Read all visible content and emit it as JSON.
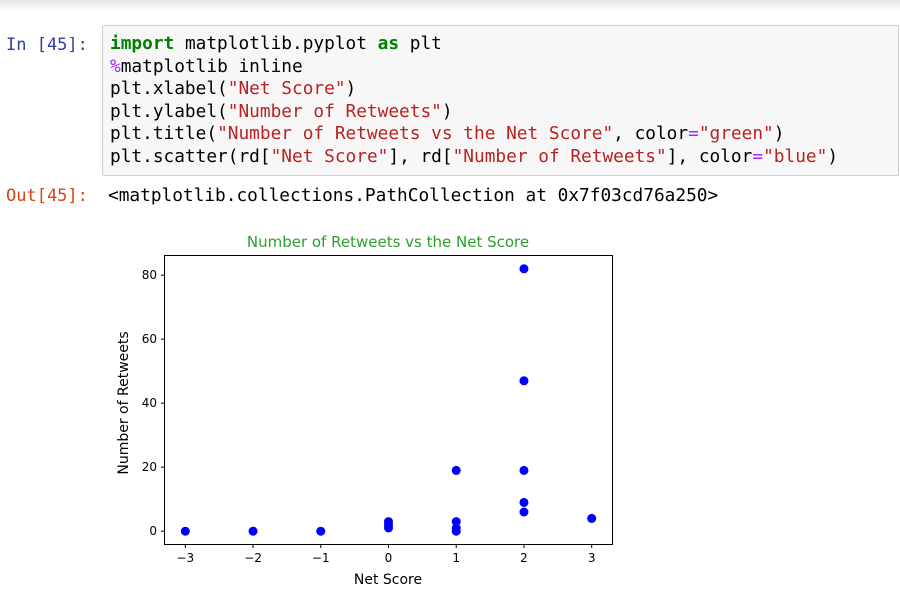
{
  "notebook": {
    "input_prompt": "In [45]:",
    "output_prompt": "Out[45]:",
    "code_lines": [
      [
        {
          "t": "import",
          "c": "kw"
        },
        {
          "t": " matplotlib.pyplot ",
          "c": ""
        },
        {
          "t": "as",
          "c": "kw"
        },
        {
          "t": " plt",
          "c": ""
        }
      ],
      [
        {
          "t": "%",
          "c": "magic"
        },
        {
          "t": "matplotlib inline",
          "c": ""
        }
      ],
      [
        {
          "t": "plt.xlabel(",
          "c": ""
        },
        {
          "t": "\"Net Score\"",
          "c": "str"
        },
        {
          "t": ")",
          "c": ""
        }
      ],
      [
        {
          "t": "plt.ylabel(",
          "c": ""
        },
        {
          "t": "\"Number of Retweets\"",
          "c": "str"
        },
        {
          "t": ")",
          "c": ""
        }
      ],
      [
        {
          "t": "plt.title(",
          "c": ""
        },
        {
          "t": "\"Number of Retweets vs the Net Score\"",
          "c": "str"
        },
        {
          "t": ", color",
          "c": ""
        },
        {
          "t": "=",
          "c": "op"
        },
        {
          "t": "\"green\"",
          "c": "str"
        },
        {
          "t": ")",
          "c": ""
        }
      ],
      [
        {
          "t": "plt.scatter(rd[",
          "c": ""
        },
        {
          "t": "\"Net Score\"",
          "c": "str"
        },
        {
          "t": "], rd[",
          "c": ""
        },
        {
          "t": "\"Number of Retweets\"",
          "c": "str"
        },
        {
          "t": "], color",
          "c": ""
        },
        {
          "t": "=",
          "c": "op"
        },
        {
          "t": "\"blue\"",
          "c": "str"
        },
        {
          "t": ")",
          "c": ""
        }
      ]
    ],
    "output_text": "<matplotlib.collections.PathCollection at 0x7f03cd76a250>"
  },
  "chart_data": {
    "type": "scatter",
    "title": "Number of Retweets vs the Net Score",
    "title_color": "#2ca02c",
    "xlabel": "Net Score",
    "ylabel": "Number of Retweets",
    "point_color": "#0000ff",
    "x_ticks": [
      -3,
      -2,
      -1,
      0,
      1,
      2,
      3
    ],
    "x_tick_labels": [
      "−3",
      "−2",
      "−1",
      "0",
      "1",
      "2",
      "3"
    ],
    "y_ticks": [
      0,
      20,
      40,
      60,
      80
    ],
    "y_tick_labels": [
      "0",
      "20",
      "40",
      "60",
      "80"
    ],
    "xlim": [
      -3.3,
      3.3
    ],
    "ylim": [
      -4,
      86
    ],
    "grid": false,
    "points": [
      {
        "x": -3,
        "y": 0
      },
      {
        "x": -2,
        "y": 0
      },
      {
        "x": -1,
        "y": 0
      },
      {
        "x": 0,
        "y": 1
      },
      {
        "x": 0,
        "y": 2
      },
      {
        "x": 0,
        "y": 3
      },
      {
        "x": 1,
        "y": 0
      },
      {
        "x": 1,
        "y": 1
      },
      {
        "x": 1,
        "y": 3
      },
      {
        "x": 1,
        "y": 19
      },
      {
        "x": 2,
        "y": 6
      },
      {
        "x": 2,
        "y": 9
      },
      {
        "x": 2,
        "y": 19
      },
      {
        "x": 2,
        "y": 47
      },
      {
        "x": 2,
        "y": 82
      },
      {
        "x": 3,
        "y": 4
      }
    ]
  }
}
